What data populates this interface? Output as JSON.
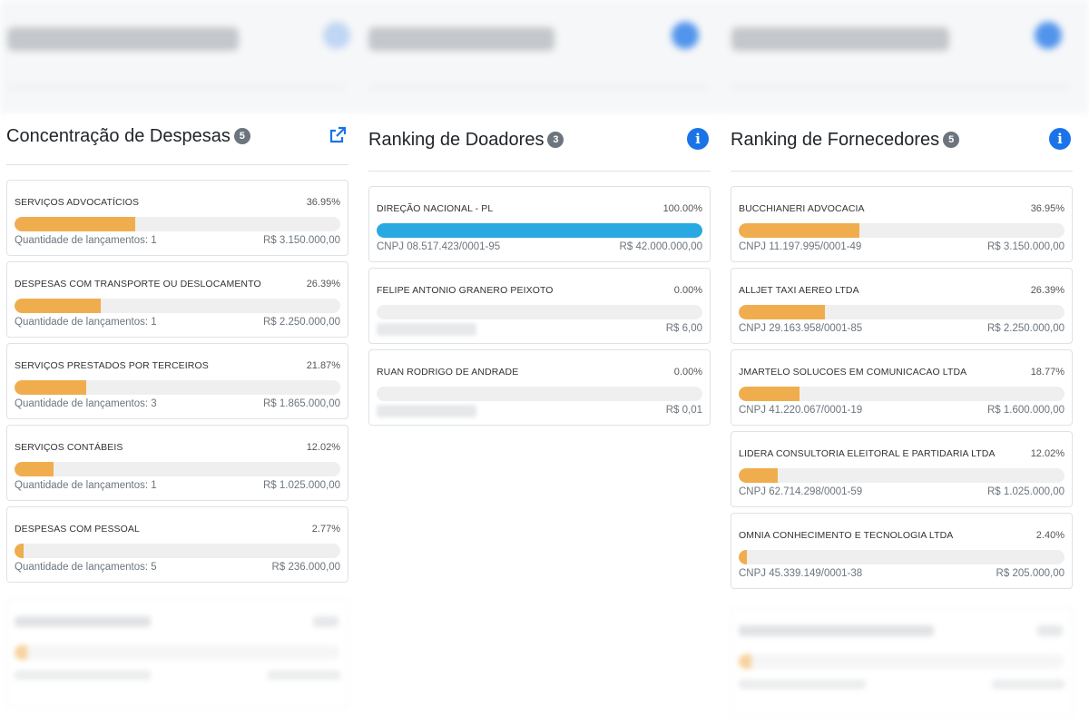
{
  "despesas": {
    "title": "Concentração de Despesas",
    "count": "5",
    "header_icon": "external-link-icon",
    "items": [
      {
        "name": "SERVIÇOS ADVOCATÍCIOS",
        "pct": "36.95%",
        "fill": 0.3695,
        "info": "Quantidade de lançamentos: 1",
        "value": "R$ 3.150.000,00"
      },
      {
        "name": "DESPESAS COM TRANSPORTE OU DESLOCAMENTO",
        "pct": "26.39%",
        "fill": 0.2639,
        "info": "Quantidade de lançamentos: 1",
        "value": "R$ 2.250.000,00"
      },
      {
        "name": "SERVIÇOS PRESTADOS POR TERCEIROS",
        "pct": "21.87%",
        "fill": 0.2187,
        "info": "Quantidade de lançamentos: 3",
        "value": "R$ 1.865.000,00"
      },
      {
        "name": "SERVIÇOS CONTÁBEIS",
        "pct": "12.02%",
        "fill": 0.1202,
        "info": "Quantidade de lançamentos: 1",
        "value": "R$ 1.025.000,00"
      },
      {
        "name": "DESPESAS COM PESSOAL",
        "pct": "2.77%",
        "fill": 0.0277,
        "info": "Quantidade de lançamentos: 5",
        "value": "R$ 236.000,00"
      }
    ]
  },
  "doadores": {
    "title": "Ranking de Doadores",
    "count": "3",
    "header_icon": "info-icon",
    "items": [
      {
        "name": "DIREÇÃO NACIONAL - PL",
        "pct": "100.00%",
        "fill": 1.0,
        "info": "CNPJ 08.517.423/0001-95",
        "value": "R$ 42.000.000,00"
      },
      {
        "name": "FELIPE ANTONIO GRANERO PEIXOTO",
        "pct": "0.00%",
        "fill": 0,
        "info": "",
        "value": "R$ 6,00"
      },
      {
        "name": "RUAN RODRIGO DE ANDRADE",
        "pct": "0.00%",
        "fill": 0,
        "info": "",
        "value": "R$ 0,01"
      }
    ]
  },
  "fornecedores": {
    "title": "Ranking de Fornecedores",
    "count": "5",
    "header_icon": "info-icon",
    "items": [
      {
        "name": "BUCCHIANERI ADVOCACIA",
        "pct": "36.95%",
        "fill": 0.3695,
        "info": "CNPJ 11.197.995/0001-49",
        "value": "R$ 3.150.000,00"
      },
      {
        "name": "ALLJET TAXI AEREO LTDA",
        "pct": "26.39%",
        "fill": 0.2639,
        "info": "CNPJ 29.163.958/0001-85",
        "value": "R$ 2.250.000,00"
      },
      {
        "name": "JMARTELO SOLUCOES EM COMUNICACAO LTDA",
        "pct": "18.77%",
        "fill": 0.1877,
        "info": "CNPJ 41.220.067/0001-19",
        "value": "R$ 1.600.000,00"
      },
      {
        "name": "LIDERA CONSULTORIA ELEITORAL E PARTIDARIA LTDA",
        "pct": "12.02%",
        "fill": 0.1202,
        "info": "CNPJ 62.714.298/0001-59",
        "value": "R$ 1.025.000,00"
      },
      {
        "name": "OMNIA CONHECIMENTO E TECNOLOGIA LTDA",
        "pct": "2.40%",
        "fill": 0.024,
        "info": "CNPJ 45.339.149/0001-38",
        "value": "R$ 205.000,00"
      }
    ]
  },
  "colors": {
    "accent_blue": "#1a73e8",
    "bar_orange": "#f0ad4e",
    "bar_blue": "#29a9e1",
    "badge_gray": "#6c757d"
  }
}
